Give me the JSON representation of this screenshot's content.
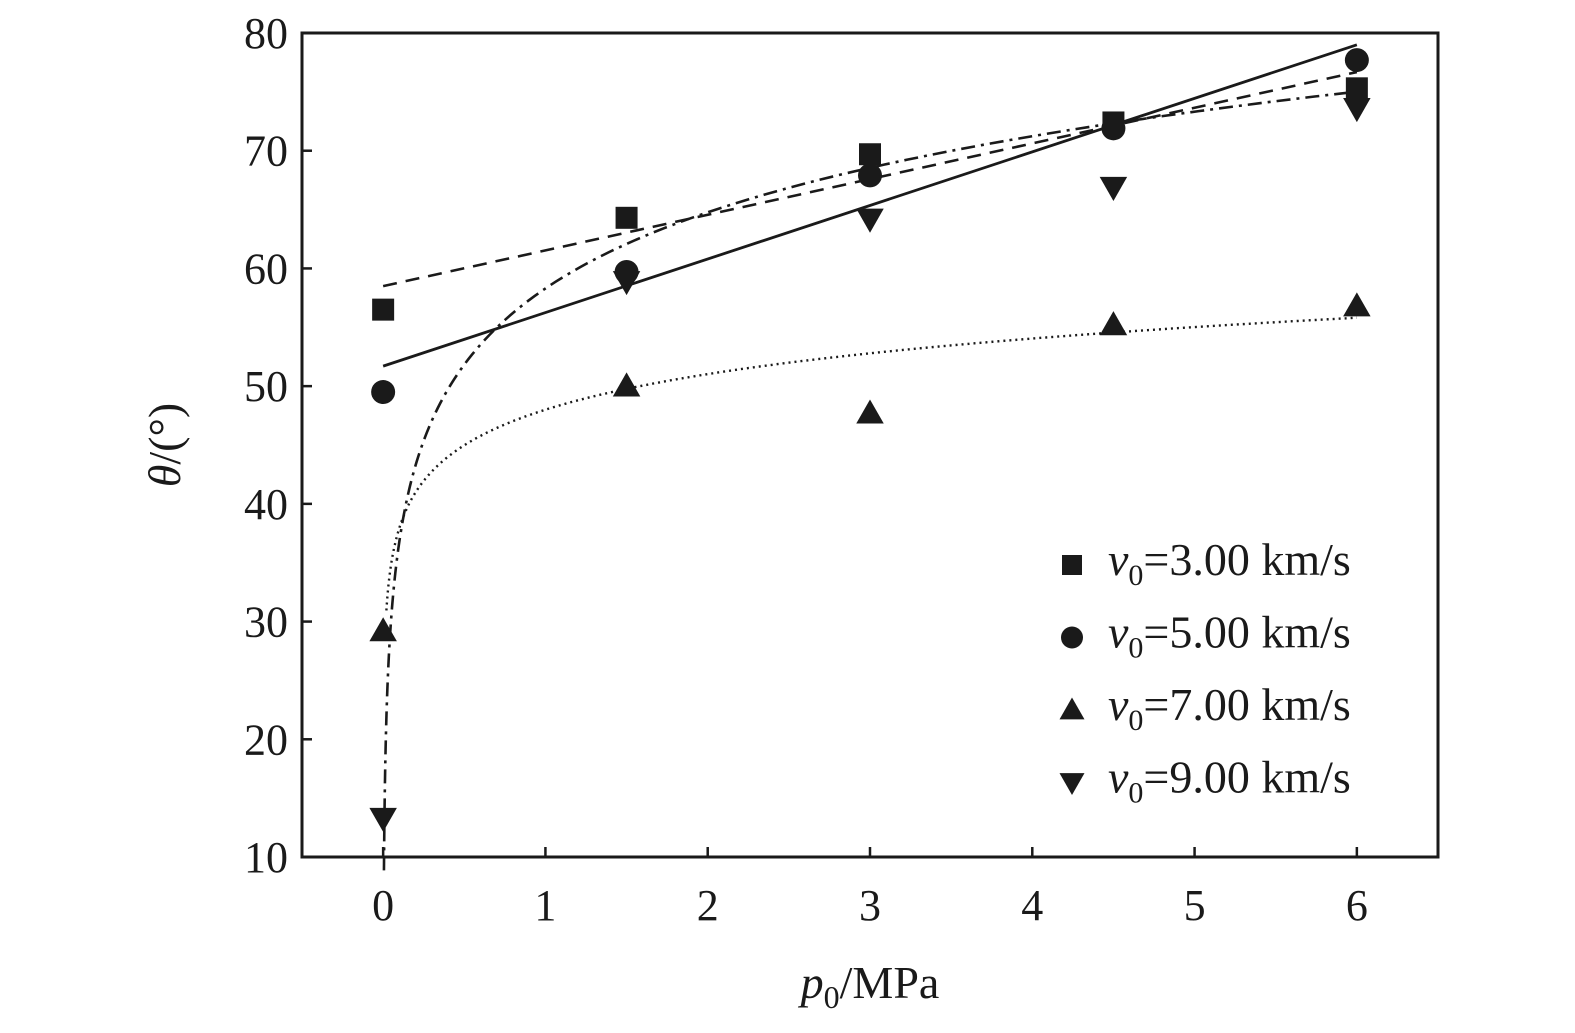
{
  "chart_data": {
    "type": "scatter",
    "title": "",
    "xlabel": {
      "symbol": "p",
      "subscript": "0",
      "unit": "/MPa"
    },
    "ylabel": {
      "symbol": "θ",
      "unit": "/(°)"
    },
    "xlim": [
      -0.5,
      6.5
    ],
    "ylim": [
      10,
      80
    ],
    "x_ticks": [
      0,
      1,
      2,
      3,
      4,
      5,
      6
    ],
    "y_ticks": [
      10,
      20,
      30,
      40,
      50,
      60,
      70,
      80
    ],
    "grid": false,
    "legend_position": "lower-right",
    "series": [
      {
        "name": "3.00 km/s",
        "legend_symbol": "v",
        "legend_subscript": "0",
        "marker": "square",
        "x": [
          0,
          1.5,
          3,
          4.5,
          6
        ],
        "y": [
          56.5,
          64.3,
          69.7,
          72.4,
          75.3
        ],
        "fit": {
          "style": "dashed",
          "kind": "linear",
          "a": 58.5,
          "b": 3.03
        }
      },
      {
        "name": "5.00 km/s",
        "legend_symbol": "v",
        "legend_subscript": "0",
        "marker": "circle",
        "x": [
          0,
          1.5,
          3,
          4.5,
          6
        ],
        "y": [
          49.5,
          59.7,
          67.9,
          71.9,
          77.7
        ],
        "fit": {
          "style": "solid",
          "kind": "linear",
          "a": 51.7,
          "b": 4.55
        }
      },
      {
        "name": "7.00 km/s",
        "legend_symbol": "v",
        "legend_subscript": "0",
        "marker": "triangle-up",
        "x": [
          0,
          1.5,
          3,
          4.5,
          6
        ],
        "y": [
          29.2,
          50.0,
          47.7,
          55.2,
          56.8
        ],
        "fit": {
          "style": "dotted",
          "kind": "log",
          "a": 48.0,
          "b": 4.36,
          "x_start": 0.02
        }
      },
      {
        "name": "9.00 km/s",
        "legend_symbol": "v",
        "legend_subscript": "0",
        "marker": "triangle-down",
        "x": [
          0,
          1.5,
          3,
          4.5,
          6
        ],
        "y": [
          13.3,
          58.9,
          64.2,
          66.9,
          73.6
        ],
        "fit": {
          "style": "dashdot",
          "kind": "log",
          "a": 58.3,
          "b": 9.33,
          "x_start": 0.005
        }
      }
    ]
  }
}
